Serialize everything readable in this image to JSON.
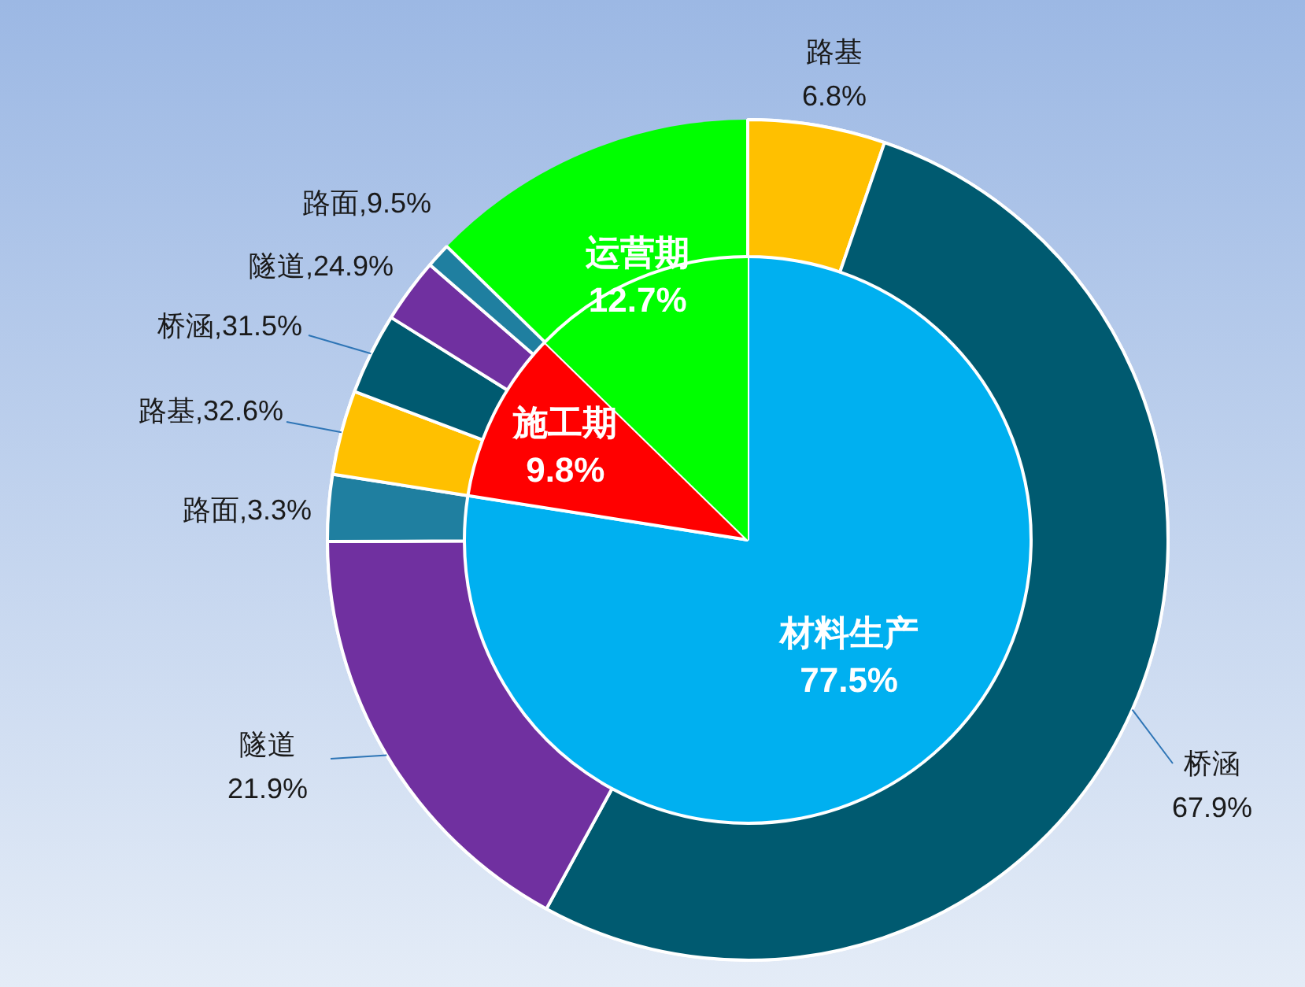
{
  "chart_data": [
    {
      "type": "pie",
      "categories": [
        "材料生产",
        "施工期",
        "运营期"
      ],
      "values": [
        77.5,
        9.8,
        12.7
      ],
      "colors": [
        "#00b0f0",
        "#ff0000",
        "#00ff00"
      ],
      "value_labels": [
        "77.5%",
        "9.8%",
        "12.7%"
      ]
    },
    {
      "type": "donut",
      "categories": [
        "路基",
        "桥涵",
        "隧道",
        "路面"
      ],
      "values": [
        6.8,
        67.9,
        21.9,
        3.3
      ],
      "colors": [
        "#ffc000",
        "#005a70",
        "#7030a0",
        "#1f7fa0"
      ],
      "value_labels": [
        "6.8%",
        "67.9%",
        "21.9%",
        "3.3%"
      ]
    },
    {
      "type": "donut",
      "categories": [
        "路基",
        "桥涵",
        "隧道",
        "路面"
      ],
      "values": [
        32.6,
        31.5,
        24.9,
        9.5
      ],
      "colors": [
        "#ffc000",
        "#005a70",
        "#7030a0",
        "#1f7fa0"
      ],
      "value_labels": [
        "32.6%",
        "31.5%",
        "24.9%",
        "9.5%"
      ]
    }
  ]
}
